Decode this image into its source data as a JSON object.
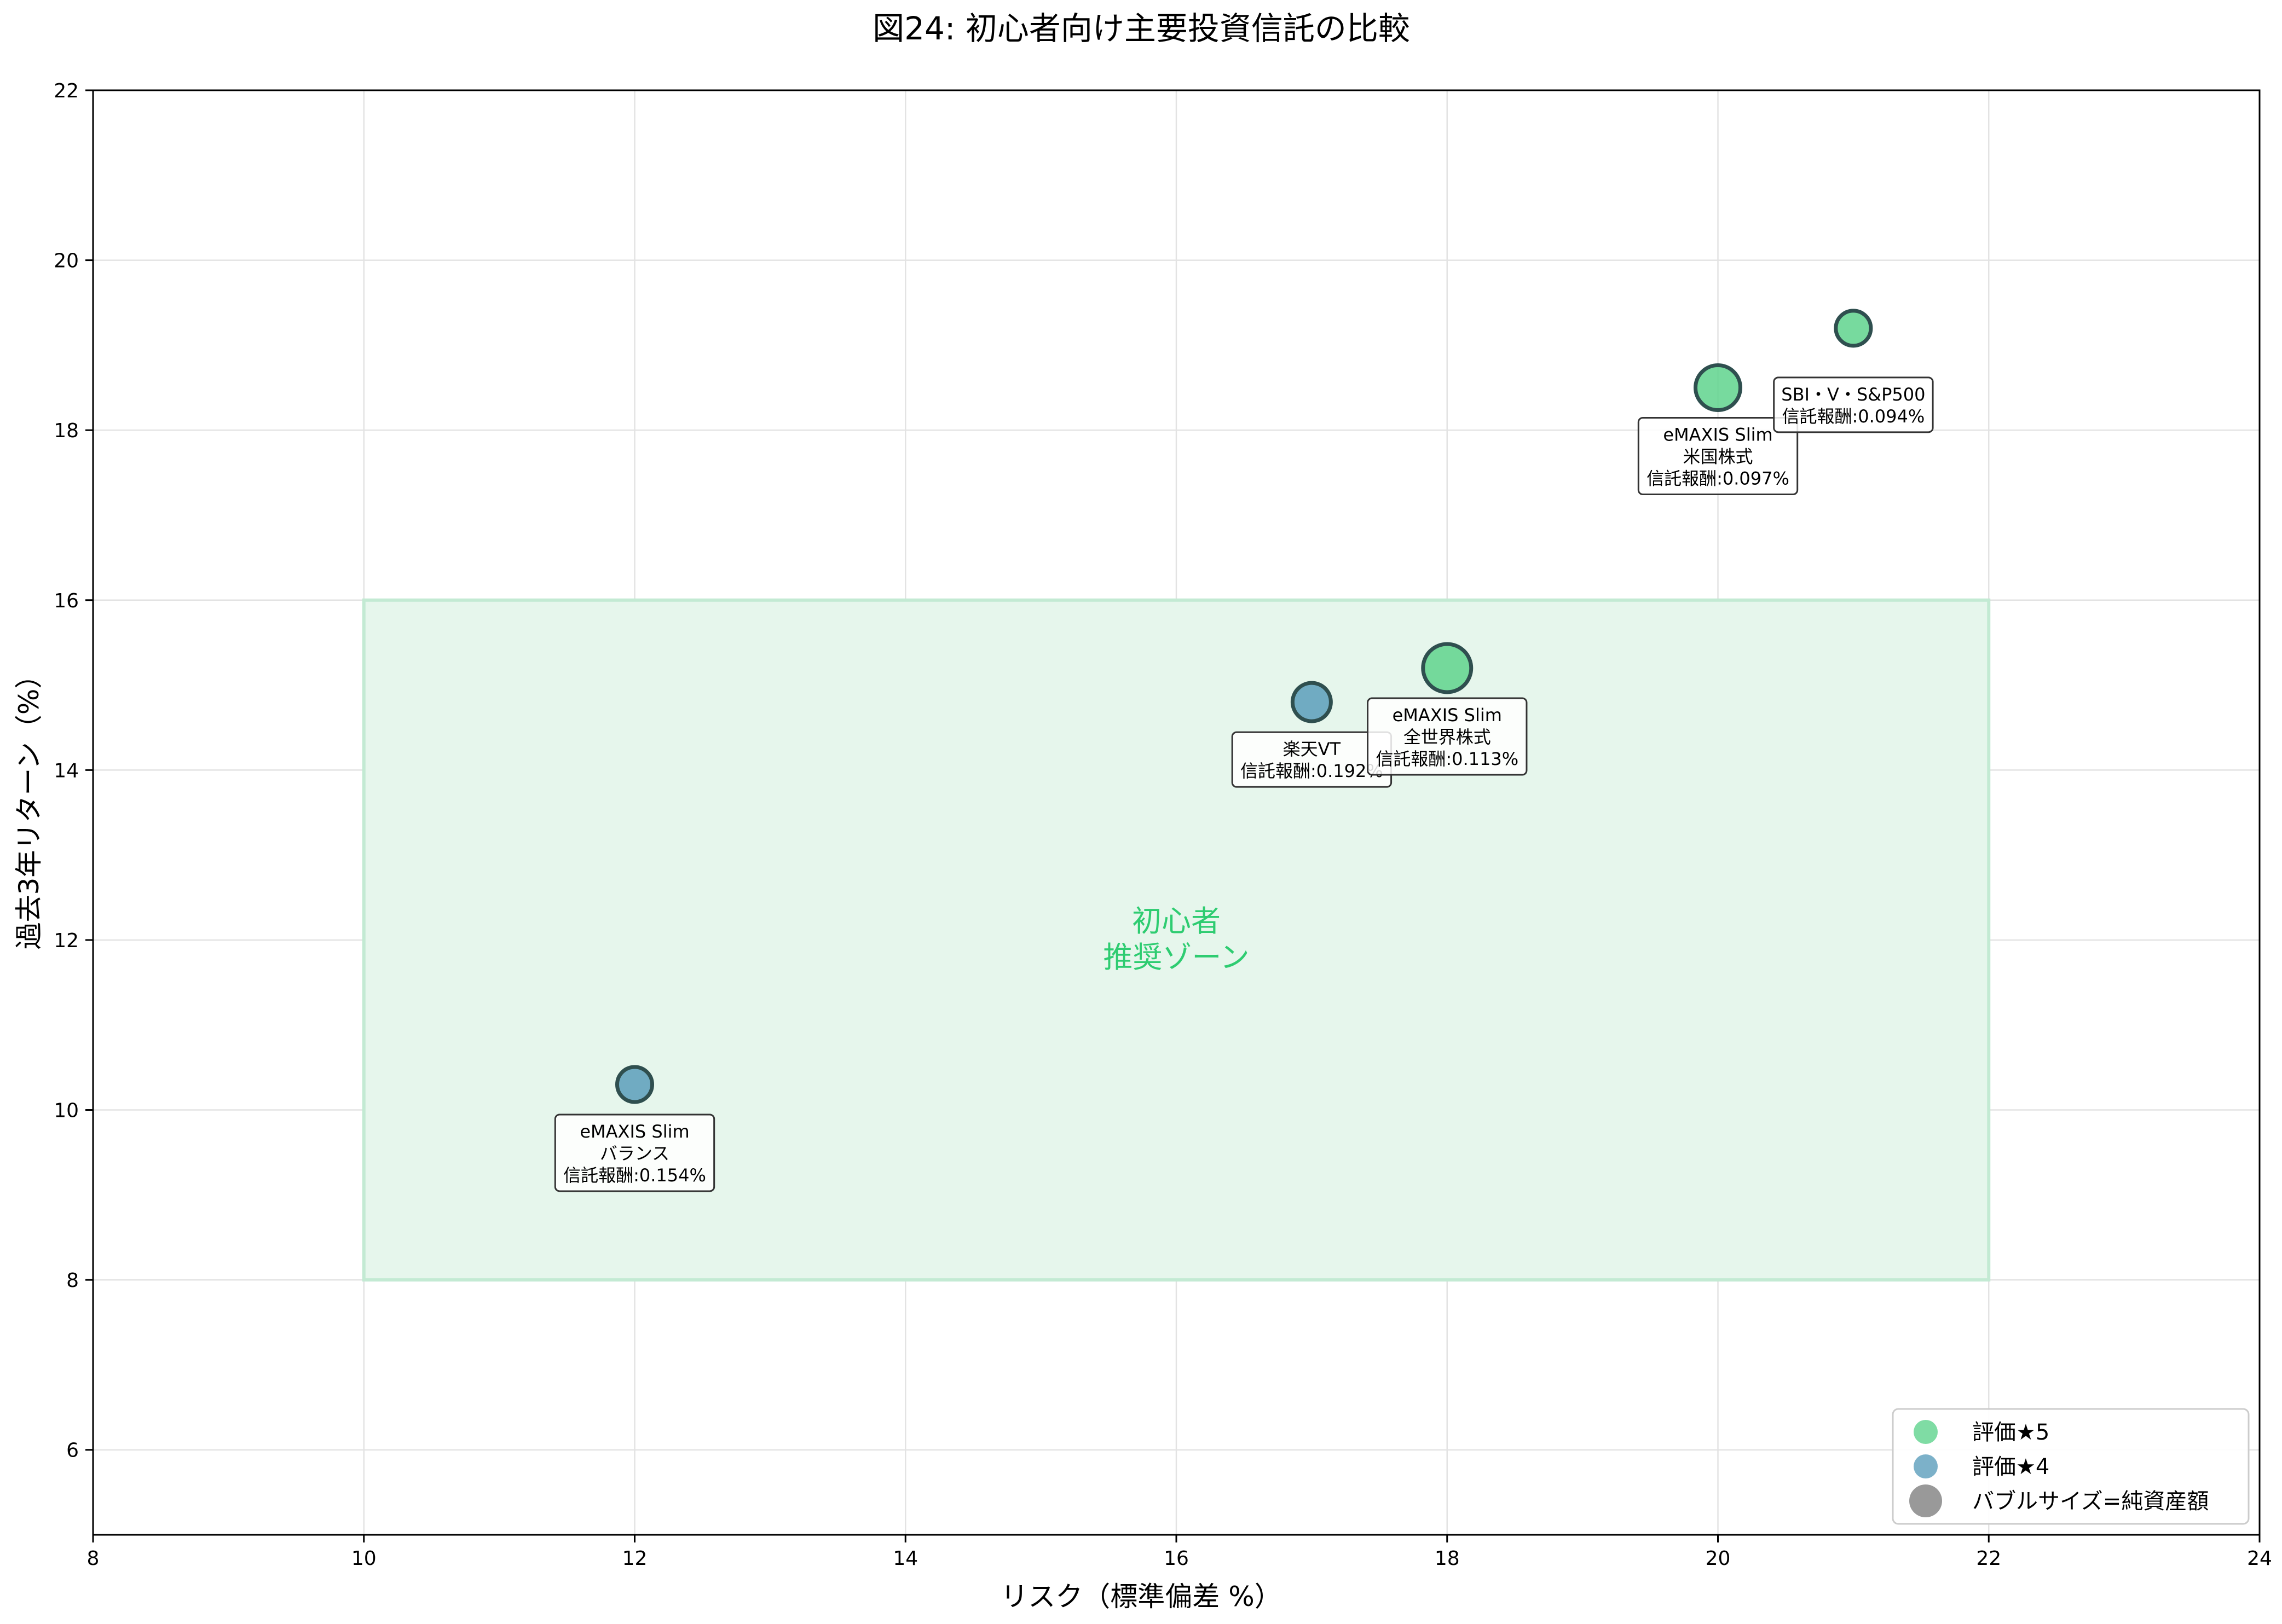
{
  "chart_data": {
    "type": "scatter",
    "title": "図24: 初心者向け主要投資信託の比較",
    "xlabel": "リスク（標準偏差 %）",
    "ylabel": "過去3年リターン（%）",
    "xlim": [
      8,
      24
    ],
    "ylim": [
      5,
      22
    ],
    "xticks": [
      "8",
      "10",
      "12",
      "14",
      "16",
      "18",
      "20",
      "22",
      "24"
    ],
    "yticks": [
      "6",
      "8",
      "10",
      "12",
      "14",
      "16",
      "18",
      "20",
      "22"
    ],
    "grid": true,
    "legend_position": "bottom-right",
    "colors": {
      "rating5": "#5fd38d",
      "rating4": "#5b9ebb",
      "size_legend": "#808080",
      "zone_fill": "#e6f6ec",
      "zone_edge": "#c3ead3",
      "zone_text": "#2ecc71",
      "edge": "#2f4f4f"
    },
    "series": [
      {
        "name": "評価★5",
        "color_key": "rating5"
      },
      {
        "name": "評価★4",
        "color_key": "rating4"
      }
    ],
    "size_legend_label": "バブルサイズ=純資産額",
    "zone": {
      "label_line1": "初心者",
      "label_line2": "推奨ゾーン",
      "x_range": [
        10,
        22
      ],
      "y_range": [
        8,
        16
      ]
    },
    "points": [
      {
        "x": 12,
        "y": 10.3,
        "rating": 4,
        "size": 2,
        "label": [
          "eMAXIS Slim",
          "バランス",
          "信託報酬:0.154%"
        ],
        "label_anchor": "below"
      },
      {
        "x": 17,
        "y": 14.8,
        "rating": 4,
        "size": 2.5,
        "label": [
          "楽天VT",
          "信託報酬:0.192%"
        ],
        "label_anchor": "below"
      },
      {
        "x": 18,
        "y": 15.2,
        "rating": 5,
        "size": 4,
        "label": [
          "eMAXIS Slim",
          "全世界株式",
          "信託報酬:0.113%"
        ],
        "label_anchor": "below"
      },
      {
        "x": 20,
        "y": 18.5,
        "rating": 5,
        "size": 3.5,
        "label": [
          "eMAXIS Slim",
          "米国株式",
          "信託報酬:0.097%"
        ],
        "label_anchor": "below"
      },
      {
        "x": 21,
        "y": 19.2,
        "rating": 5,
        "size": 2,
        "label": [
          "SBI・V・S&P500",
          "信託報酬:0.094%"
        ],
        "label_anchor": "below-far"
      }
    ]
  }
}
